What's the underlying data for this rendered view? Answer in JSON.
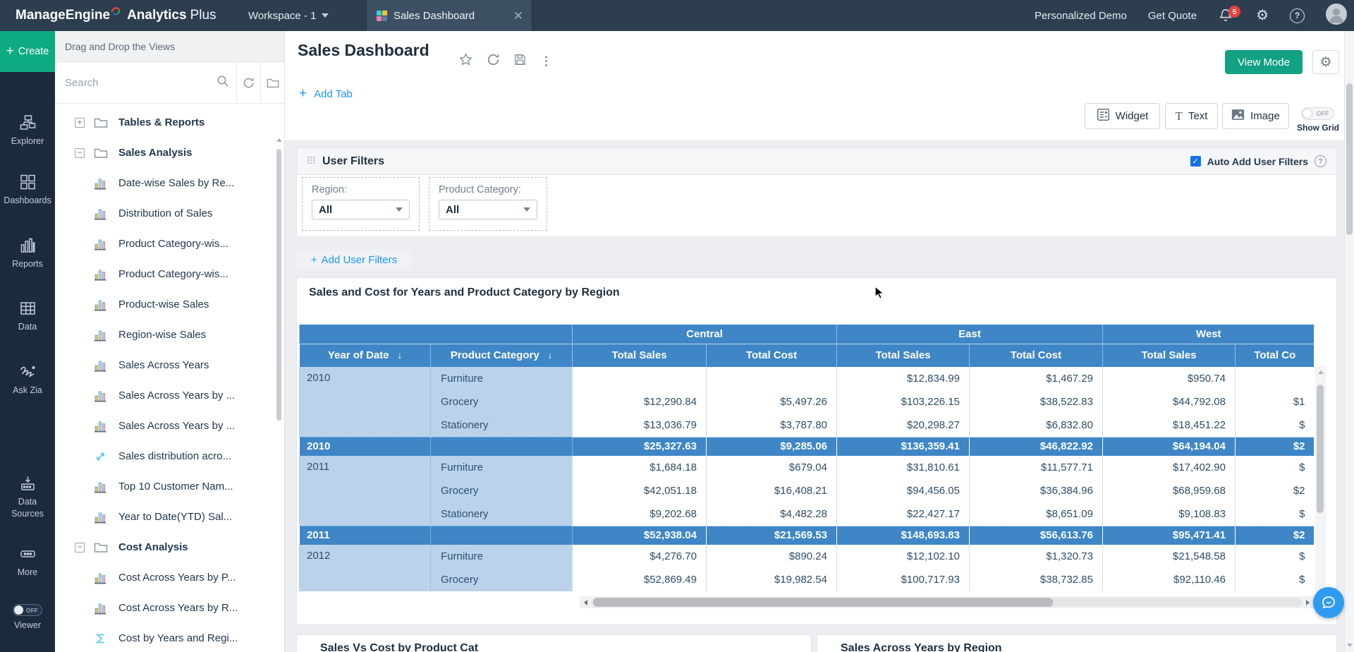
{
  "topbar": {
    "logo": {
      "part1": "ManageEngine",
      "part2": "Analytics",
      "part3": "Plus"
    },
    "workspace_label": "Workspace - 1",
    "tab_title": "Sales Dashboard",
    "links": {
      "demo": "Personalized Demo",
      "quote": "Get Quote"
    },
    "notification_count": "5"
  },
  "rail": {
    "create_label": "Create",
    "items": [
      {
        "icon": "explorer-icon",
        "label": "Explorer"
      },
      {
        "icon": "dashboards-icon",
        "label": "Dashboards"
      },
      {
        "icon": "reports-icon",
        "label": "Reports"
      },
      {
        "icon": "data-icon",
        "label": "Data"
      },
      {
        "icon": "ask-zia-icon",
        "label": "Ask Zia"
      },
      {
        "icon": "data-sources-icon",
        "label": "Data Sources"
      },
      {
        "icon": "more-icon",
        "label": "More"
      }
    ],
    "viewer": {
      "label": "Viewer",
      "state": "OFF"
    }
  },
  "panel": {
    "header": "Drag and Drop the Views",
    "search_placeholder": "Search",
    "tree": [
      {
        "kind": "folder",
        "expand": "plus",
        "icon": "folder-icon",
        "label": "Tables & Reports"
      },
      {
        "kind": "folder",
        "expand": "minus",
        "icon": "folder-icon",
        "label": "Sales Analysis"
      },
      {
        "kind": "report",
        "icon": "bar-chart-icon",
        "label": "Date-wise Sales by Re..."
      },
      {
        "kind": "report",
        "icon": "bar-chart-icon",
        "label": "Distribution of Sales"
      },
      {
        "kind": "report",
        "icon": "bar-chart-icon",
        "label": "Product Category-wis..."
      },
      {
        "kind": "report",
        "icon": "bar-chart-icon",
        "label": "Product Category-wis..."
      },
      {
        "kind": "report",
        "icon": "bar-chart-icon",
        "label": "Product-wise Sales"
      },
      {
        "kind": "report",
        "icon": "bar-chart-icon",
        "label": "Region-wise Sales"
      },
      {
        "kind": "report",
        "icon": "bar-chart-icon",
        "label": "Sales Across Years"
      },
      {
        "kind": "report",
        "icon": "bar-chart-icon",
        "label": "Sales Across Years by ..."
      },
      {
        "kind": "report",
        "icon": "bar-chart-icon",
        "label": "Sales Across Years by ..."
      },
      {
        "kind": "report",
        "icon": "scatter-icon",
        "label": "Sales distribution acro..."
      },
      {
        "kind": "report",
        "icon": "bar-chart-icon",
        "label": "Top 10 Customer Nam..."
      },
      {
        "kind": "report",
        "icon": "bar-chart-icon",
        "label": "Year to Date(YTD) Sal..."
      },
      {
        "kind": "folder",
        "expand": "minus",
        "icon": "folder-icon",
        "label": "Cost Analysis"
      },
      {
        "kind": "report",
        "icon": "bar-chart-icon",
        "label": "Cost Across Years by P..."
      },
      {
        "kind": "report",
        "icon": "bar-chart-icon",
        "label": "Cost Across Years by R..."
      },
      {
        "kind": "report",
        "icon": "sigma-icon",
        "label": "Cost by Years and Regi..."
      }
    ]
  },
  "main": {
    "title": "Sales Dashboard",
    "view_mode_label": "View Mode",
    "add_tab_label": "Add Tab",
    "toolbar": {
      "widget": "Widget",
      "text": "Text",
      "image": "Image",
      "show_grid": "Show Grid",
      "show_grid_state": "OFF"
    }
  },
  "filters": {
    "title": "User Filters",
    "auto_add_label": "Auto Add User Filters",
    "add_button_label": "Add User Filters",
    "items": [
      {
        "label": "Region:",
        "value": "All"
      },
      {
        "label": "Product Category:",
        "value": "All"
      }
    ]
  },
  "table": {
    "title": "Sales and Cost for Years and Product Category by Region",
    "row_headers": [
      "Year of Date",
      "Product Category"
    ],
    "regions": [
      "Central",
      "East",
      "West"
    ],
    "measure_headers": [
      "Total Sales",
      "Total Cost",
      "Total Sales",
      "Total Cost",
      "Total Sales",
      "Total Co"
    ],
    "groups": [
      {
        "year": "2010",
        "rows": [
          {
            "category": "Furniture",
            "values": [
              "",
              "",
              "$12,834.99",
              "$1,467.29",
              "$950.74",
              ""
            ]
          },
          {
            "category": "Grocery",
            "values": [
              "$12,290.84",
              "$5,497.26",
              "$103,226.15",
              "$38,522.83",
              "$44,792.08",
              "$1"
            ]
          },
          {
            "category": "Stationery",
            "values": [
              "$13,036.79",
              "$3,787.80",
              "$20,298.27",
              "$6,832.80",
              "$18,451.22",
              "$"
            ]
          }
        ],
        "summary": {
          "values": [
            "$25,327.63",
            "$9,285.06",
            "$136,359.41",
            "$46,822.92",
            "$64,194.04",
            "$2"
          ]
        }
      },
      {
        "year": "2011",
        "rows": [
          {
            "category": "Furniture",
            "values": [
              "$1,684.18",
              "$679.04",
              "$31,810.61",
              "$11,577.71",
              "$17,402.90",
              "$"
            ]
          },
          {
            "category": "Grocery",
            "values": [
              "$42,051.18",
              "$16,408.21",
              "$94,456.05",
              "$36,384.96",
              "$68,959.68",
              "$2"
            ]
          },
          {
            "category": "Stationery",
            "values": [
              "$9,202.68",
              "$4,482.28",
              "$22,427.17",
              "$8,651.09",
              "$9,108.83",
              "$"
            ]
          }
        ],
        "summary": {
          "values": [
            "$52,938.04",
            "$21,569.53",
            "$148,693.83",
            "$56,613.76",
            "$95,471.41",
            "$2"
          ]
        }
      },
      {
        "year": "2012",
        "rows": [
          {
            "category": "Furniture",
            "values": [
              "$4,276.70",
              "$890.24",
              "$12,102.10",
              "$1,320.73",
              "$21,548.58",
              "$"
            ]
          },
          {
            "category": "Grocery",
            "values": [
              "$52,869.49",
              "$19,982.54",
              "$100,717.93",
              "$38,732.85",
              "$92,110.46",
              "$"
            ]
          }
        ]
      }
    ]
  },
  "bottom_widgets": {
    "left_title": "Sales Vs Cost by Product Cat",
    "right_title": "Sales Across Years by Region"
  }
}
